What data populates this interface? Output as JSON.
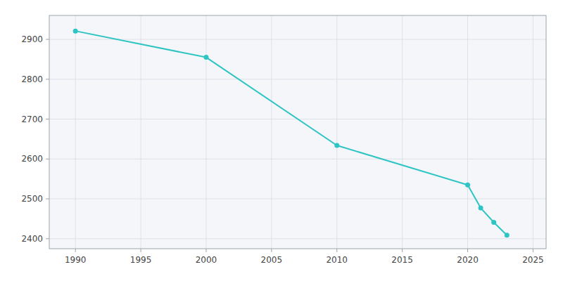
{
  "chart_data": {
    "type": "line",
    "x": [
      1990,
      2000,
      2010,
      2020,
      2021,
      2022,
      2023
    ],
    "values": [
      2921,
      2855,
      2634,
      2535,
      2477,
      2441,
      2409
    ],
    "color": "#2EC4C4",
    "marker": "circle",
    "xlim": [
      1988,
      2026
    ],
    "ylim": [
      2375,
      2960
    ],
    "xticks": [
      1990,
      1995,
      2000,
      2005,
      2010,
      2015,
      2020,
      2025
    ],
    "yticks": [
      2400,
      2500,
      2600,
      2700,
      2800,
      2900
    ],
    "grid": true
  }
}
